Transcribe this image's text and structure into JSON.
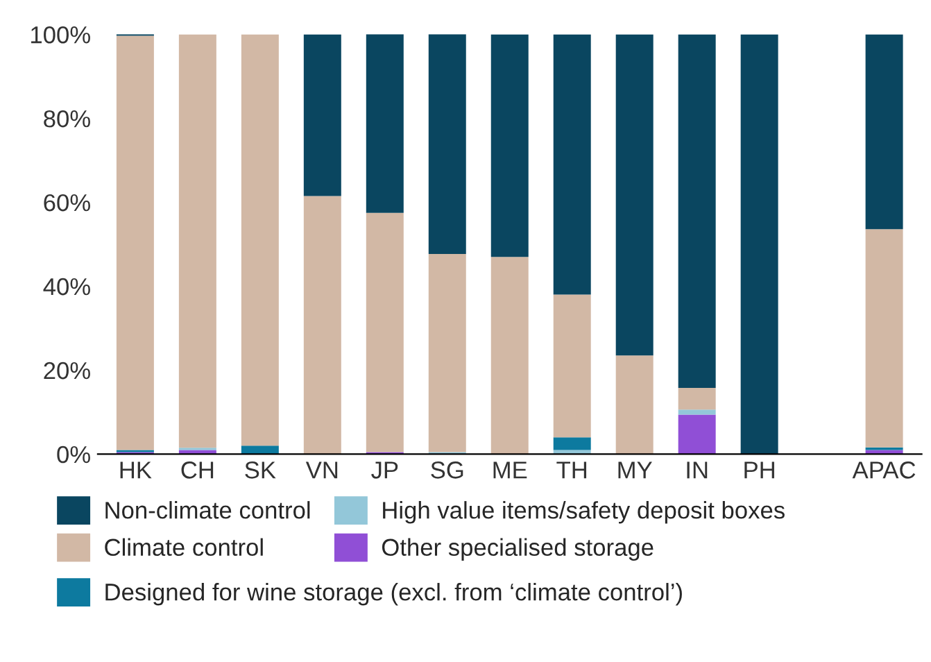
{
  "chart_data": {
    "type": "bar",
    "stacked": true,
    "categories": [
      "HK",
      "CH",
      "SK",
      "VN",
      "JP",
      "SG",
      "ME",
      "TH",
      "MY",
      "IN",
      "PH",
      null,
      "APAC"
    ],
    "series": [
      {
        "name": "Other specialised storage",
        "color": "#904fd6",
        "values": [
          0.5,
          1,
          0,
          0,
          0.5,
          0,
          0,
          0,
          0,
          9.4,
          0,
          null,
          1
        ]
      },
      {
        "name": "High value items/safety deposit boxes",
        "color": "#93c7d9",
        "values": [
          0,
          0.5,
          0,
          0,
          0,
          0.5,
          0,
          1,
          0,
          1.2,
          0,
          null,
          0
        ]
      },
      {
        "name": "Designed for wine storage (excl. from ‘climate control’)",
        "color": "#0d7a9f",
        "values": [
          0.5,
          0,
          2,
          0,
          0,
          0,
          0,
          3,
          0,
          0,
          0,
          null,
          0.6
        ]
      },
      {
        "name": "Climate control",
        "color": "#d2b8a5",
        "values": [
          98.7,
          98.5,
          98,
          61.5,
          57,
          47.2,
          47,
          34,
          23.5,
          5.2,
          0,
          null,
          52
        ]
      },
      {
        "name": "Non-climate control",
        "color": "#0a4660",
        "values": [
          0.5,
          0,
          0,
          38.5,
          42.7,
          52.5,
          53,
          62,
          76.5,
          84.2,
          100,
          null,
          46.4
        ]
      }
    ],
    "ylim": [
      0,
      100
    ],
    "yticks": [
      {
        "value": 0,
        "label": "0%"
      },
      {
        "value": 20,
        "label": "20%"
      },
      {
        "value": 40,
        "label": "40%"
      },
      {
        "value": 60,
        "label": "60%"
      },
      {
        "value": 80,
        "label": "80%"
      },
      {
        "value": 100,
        "label": "100%"
      }
    ],
    "legend": "bottom"
  }
}
